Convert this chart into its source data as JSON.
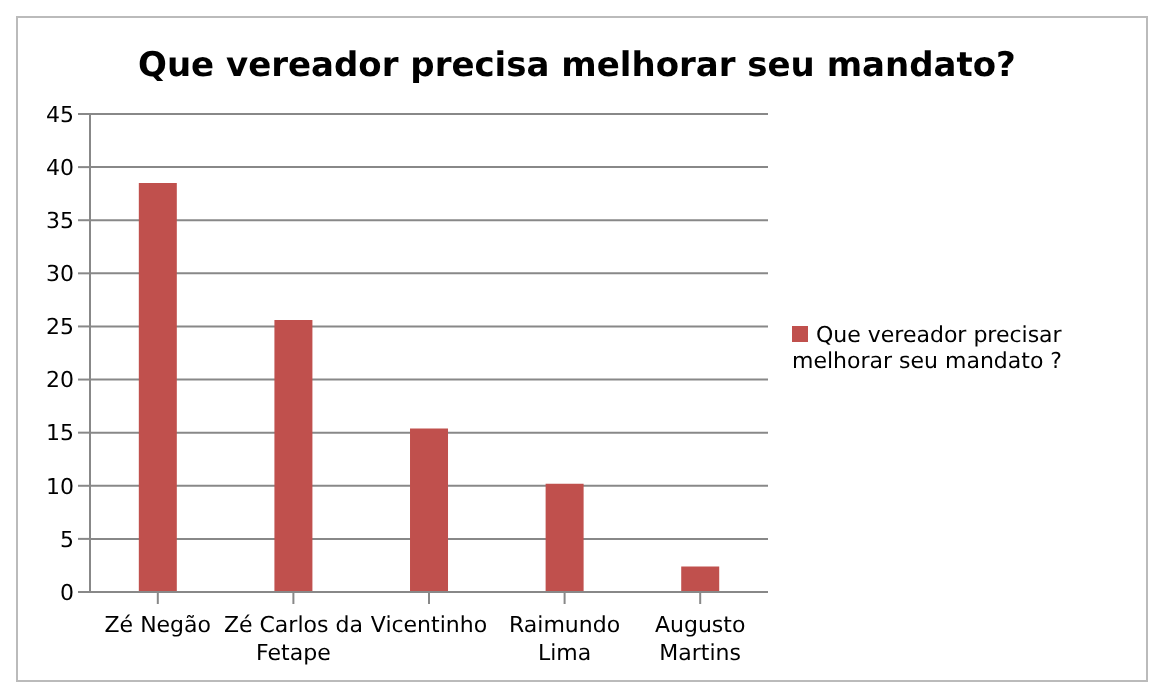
{
  "chart_data": {
    "type": "bar",
    "title": "Que vereador precisa melhorar seu mandato?",
    "categories": [
      "Zé Negão",
      "Zé Carlos da Fetape",
      "Vicentinho",
      "Raimundo Lima",
      "Augusto Martins"
    ],
    "series": [
      {
        "name": "Que vereador precisar melhorar seu mandato ?",
        "color": "#c0504d",
        "values": [
          38.5,
          25.6,
          15.4,
          10.2,
          2.4
        ]
      }
    ],
    "ylim": [
      0,
      45
    ],
    "yticks": [
      0,
      5,
      10,
      15,
      20,
      25,
      30,
      35,
      40,
      45
    ],
    "grid": "y",
    "legend": "right"
  }
}
